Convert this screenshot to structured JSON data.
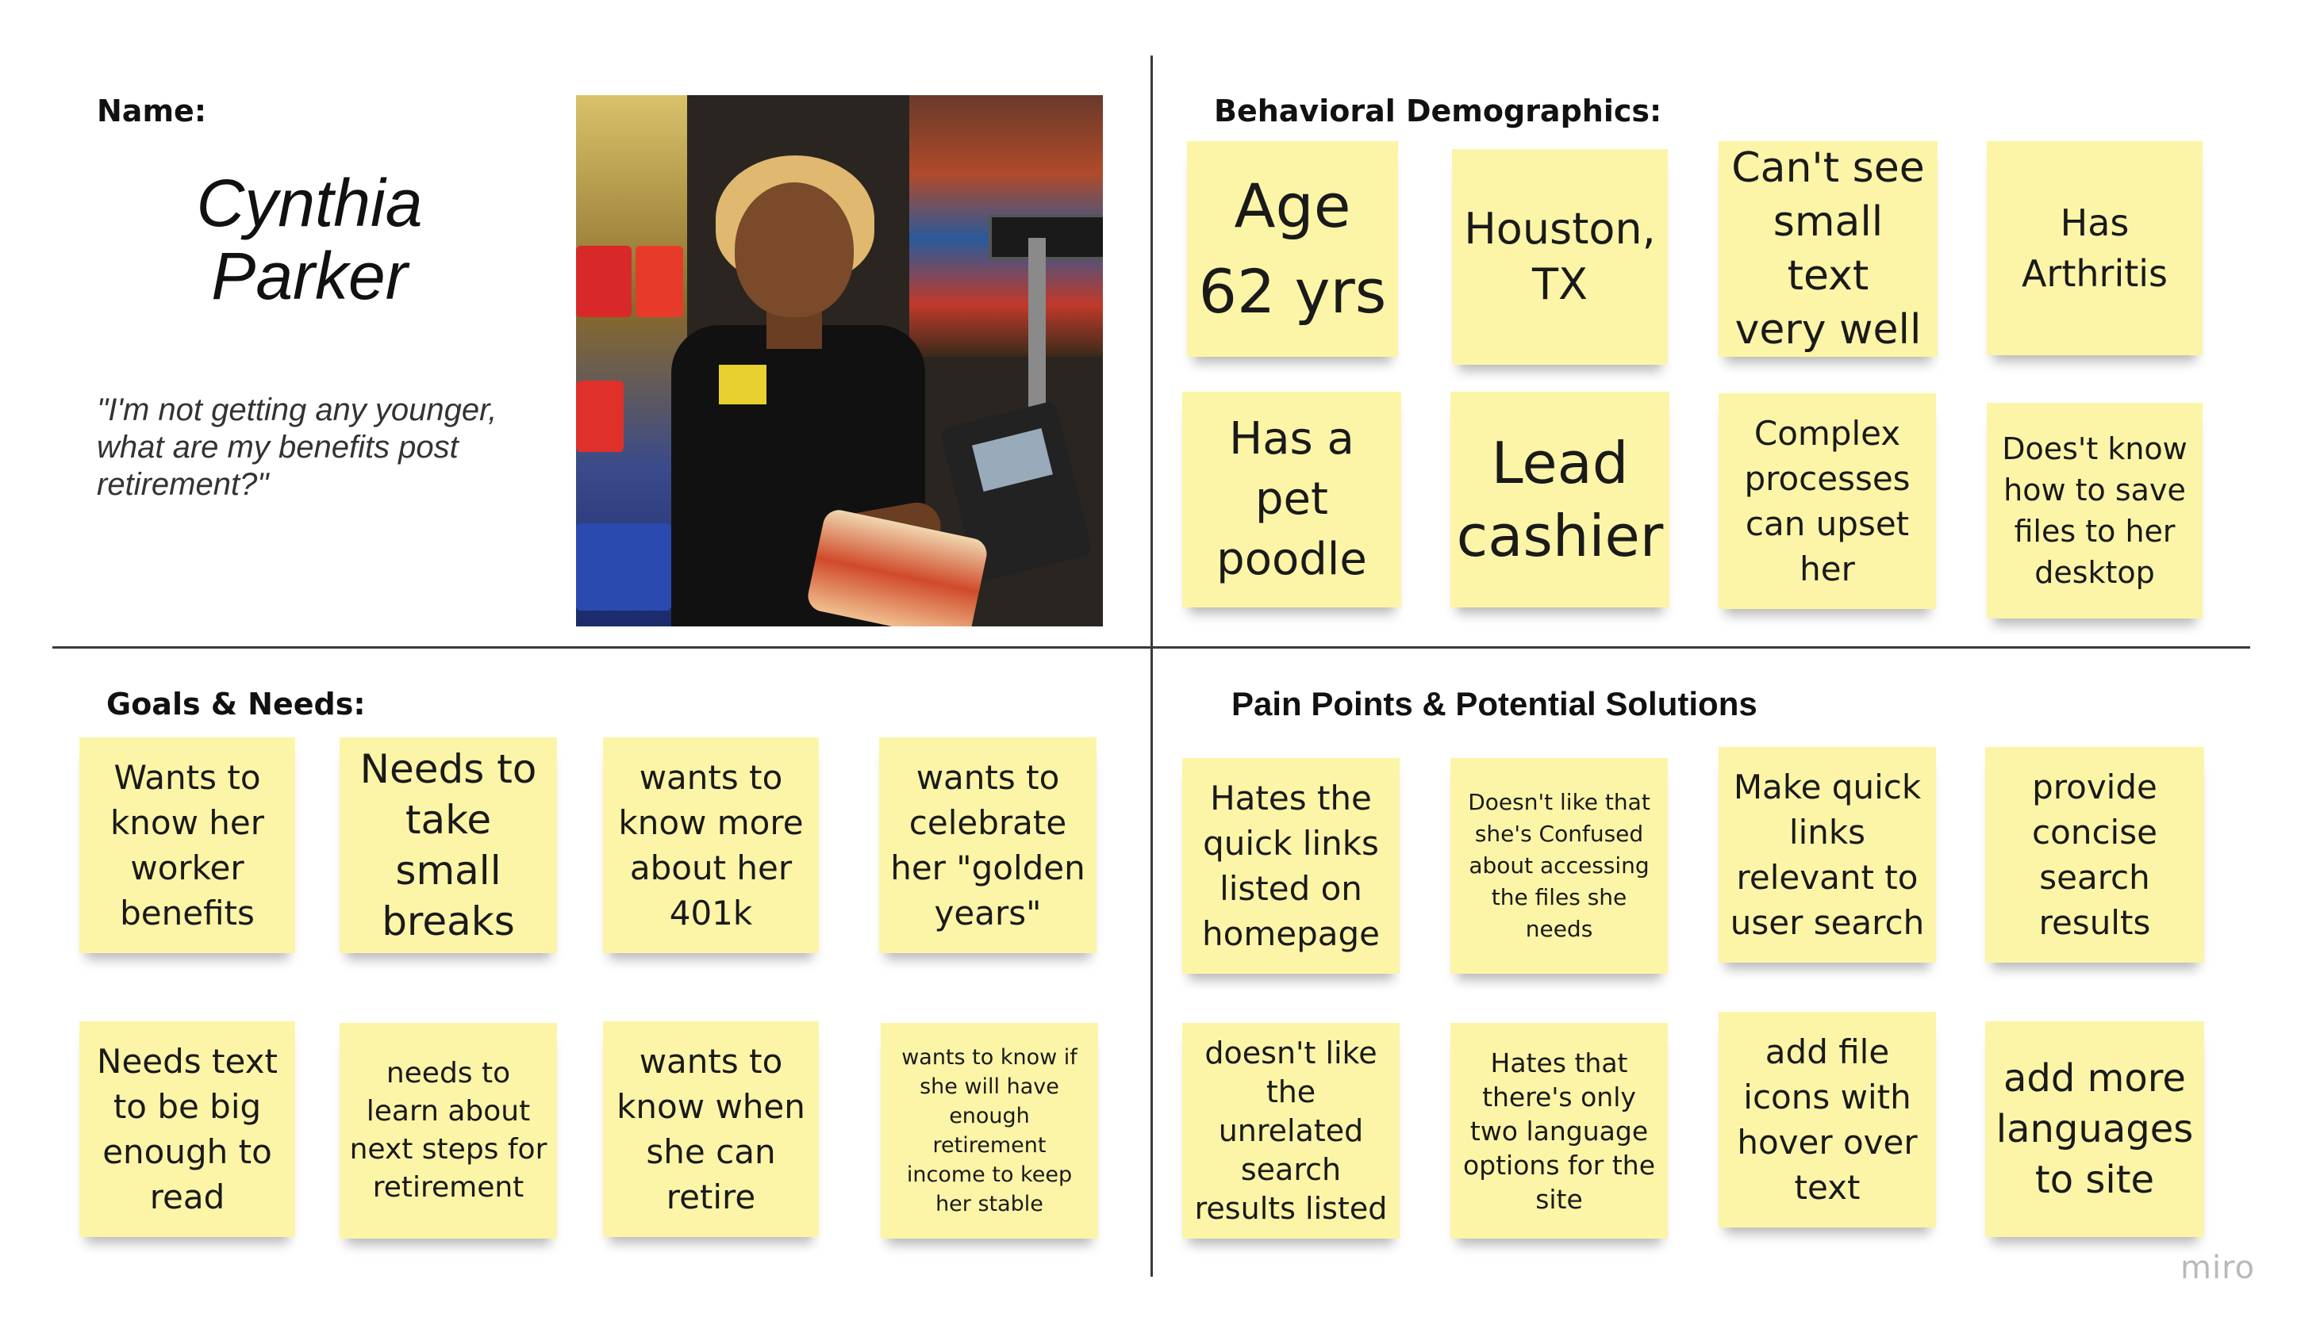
{
  "persona": {
    "name_label": "Name:",
    "name_line1": "Cynthia",
    "name_line2": "Parker",
    "quote_line1": "\"I'm not getting any younger,",
    "quote_line2": "what are my benefits post",
    "quote_line3": "retirement?\""
  },
  "sections": {
    "behavioral": "Behavioral Demographics:",
    "goals": "Goals & Needs:",
    "pain": "Pain Points & Potential Solutions"
  },
  "behavioral_notes": [
    [
      "Age",
      "62 yrs"
    ],
    [
      "Houston,",
      "TX"
    ],
    [
      "Can't see",
      "small text",
      "very well"
    ],
    [
      "Has",
      "Arthritis"
    ],
    [
      "Has a",
      "pet",
      "poodle"
    ],
    [
      "Lead",
      "cashier"
    ],
    [
      "Complex",
      "processes",
      "can upset",
      "her"
    ],
    [
      "Does't know",
      "how to save",
      "files to her",
      "desktop"
    ]
  ],
  "goals_notes": [
    [
      "Wants to",
      "know her",
      "worker",
      "benefits"
    ],
    [
      "Needs to",
      "take small",
      "breaks"
    ],
    [
      "wants to",
      "know more",
      "about her",
      "401k"
    ],
    [
      "wants to",
      "celebrate",
      "her \"golden",
      "years\""
    ],
    [
      "Needs text",
      "to be big",
      "enough to",
      "read"
    ],
    [
      "needs to",
      "learn about",
      "next steps for",
      "retirement"
    ],
    [
      "wants to",
      "know when",
      "she can",
      "retire"
    ],
    [
      "wants to know if",
      "she will have",
      "enough",
      "retirement",
      "income to keep",
      "her stable"
    ]
  ],
  "pain_notes": [
    [
      "Hates the",
      "quick links",
      "listed on",
      "homepage"
    ],
    [
      "Doesn't like that",
      "she's Confused",
      "about accessing",
      "the files she",
      "needs"
    ],
    [
      "Make quick",
      "links",
      "relevant to",
      "user search"
    ],
    [
      "provide",
      "concise",
      "search",
      "results"
    ],
    [
      "doesn't like",
      "the unrelated",
      "search",
      "results listed"
    ],
    [
      "Hates that",
      "there's only",
      "two language",
      "options for the",
      "site"
    ],
    [
      "add file",
      "icons with",
      "hover over",
      "text"
    ],
    [
      "add more",
      "languages",
      "to site"
    ]
  ],
  "watermark": "miro"
}
